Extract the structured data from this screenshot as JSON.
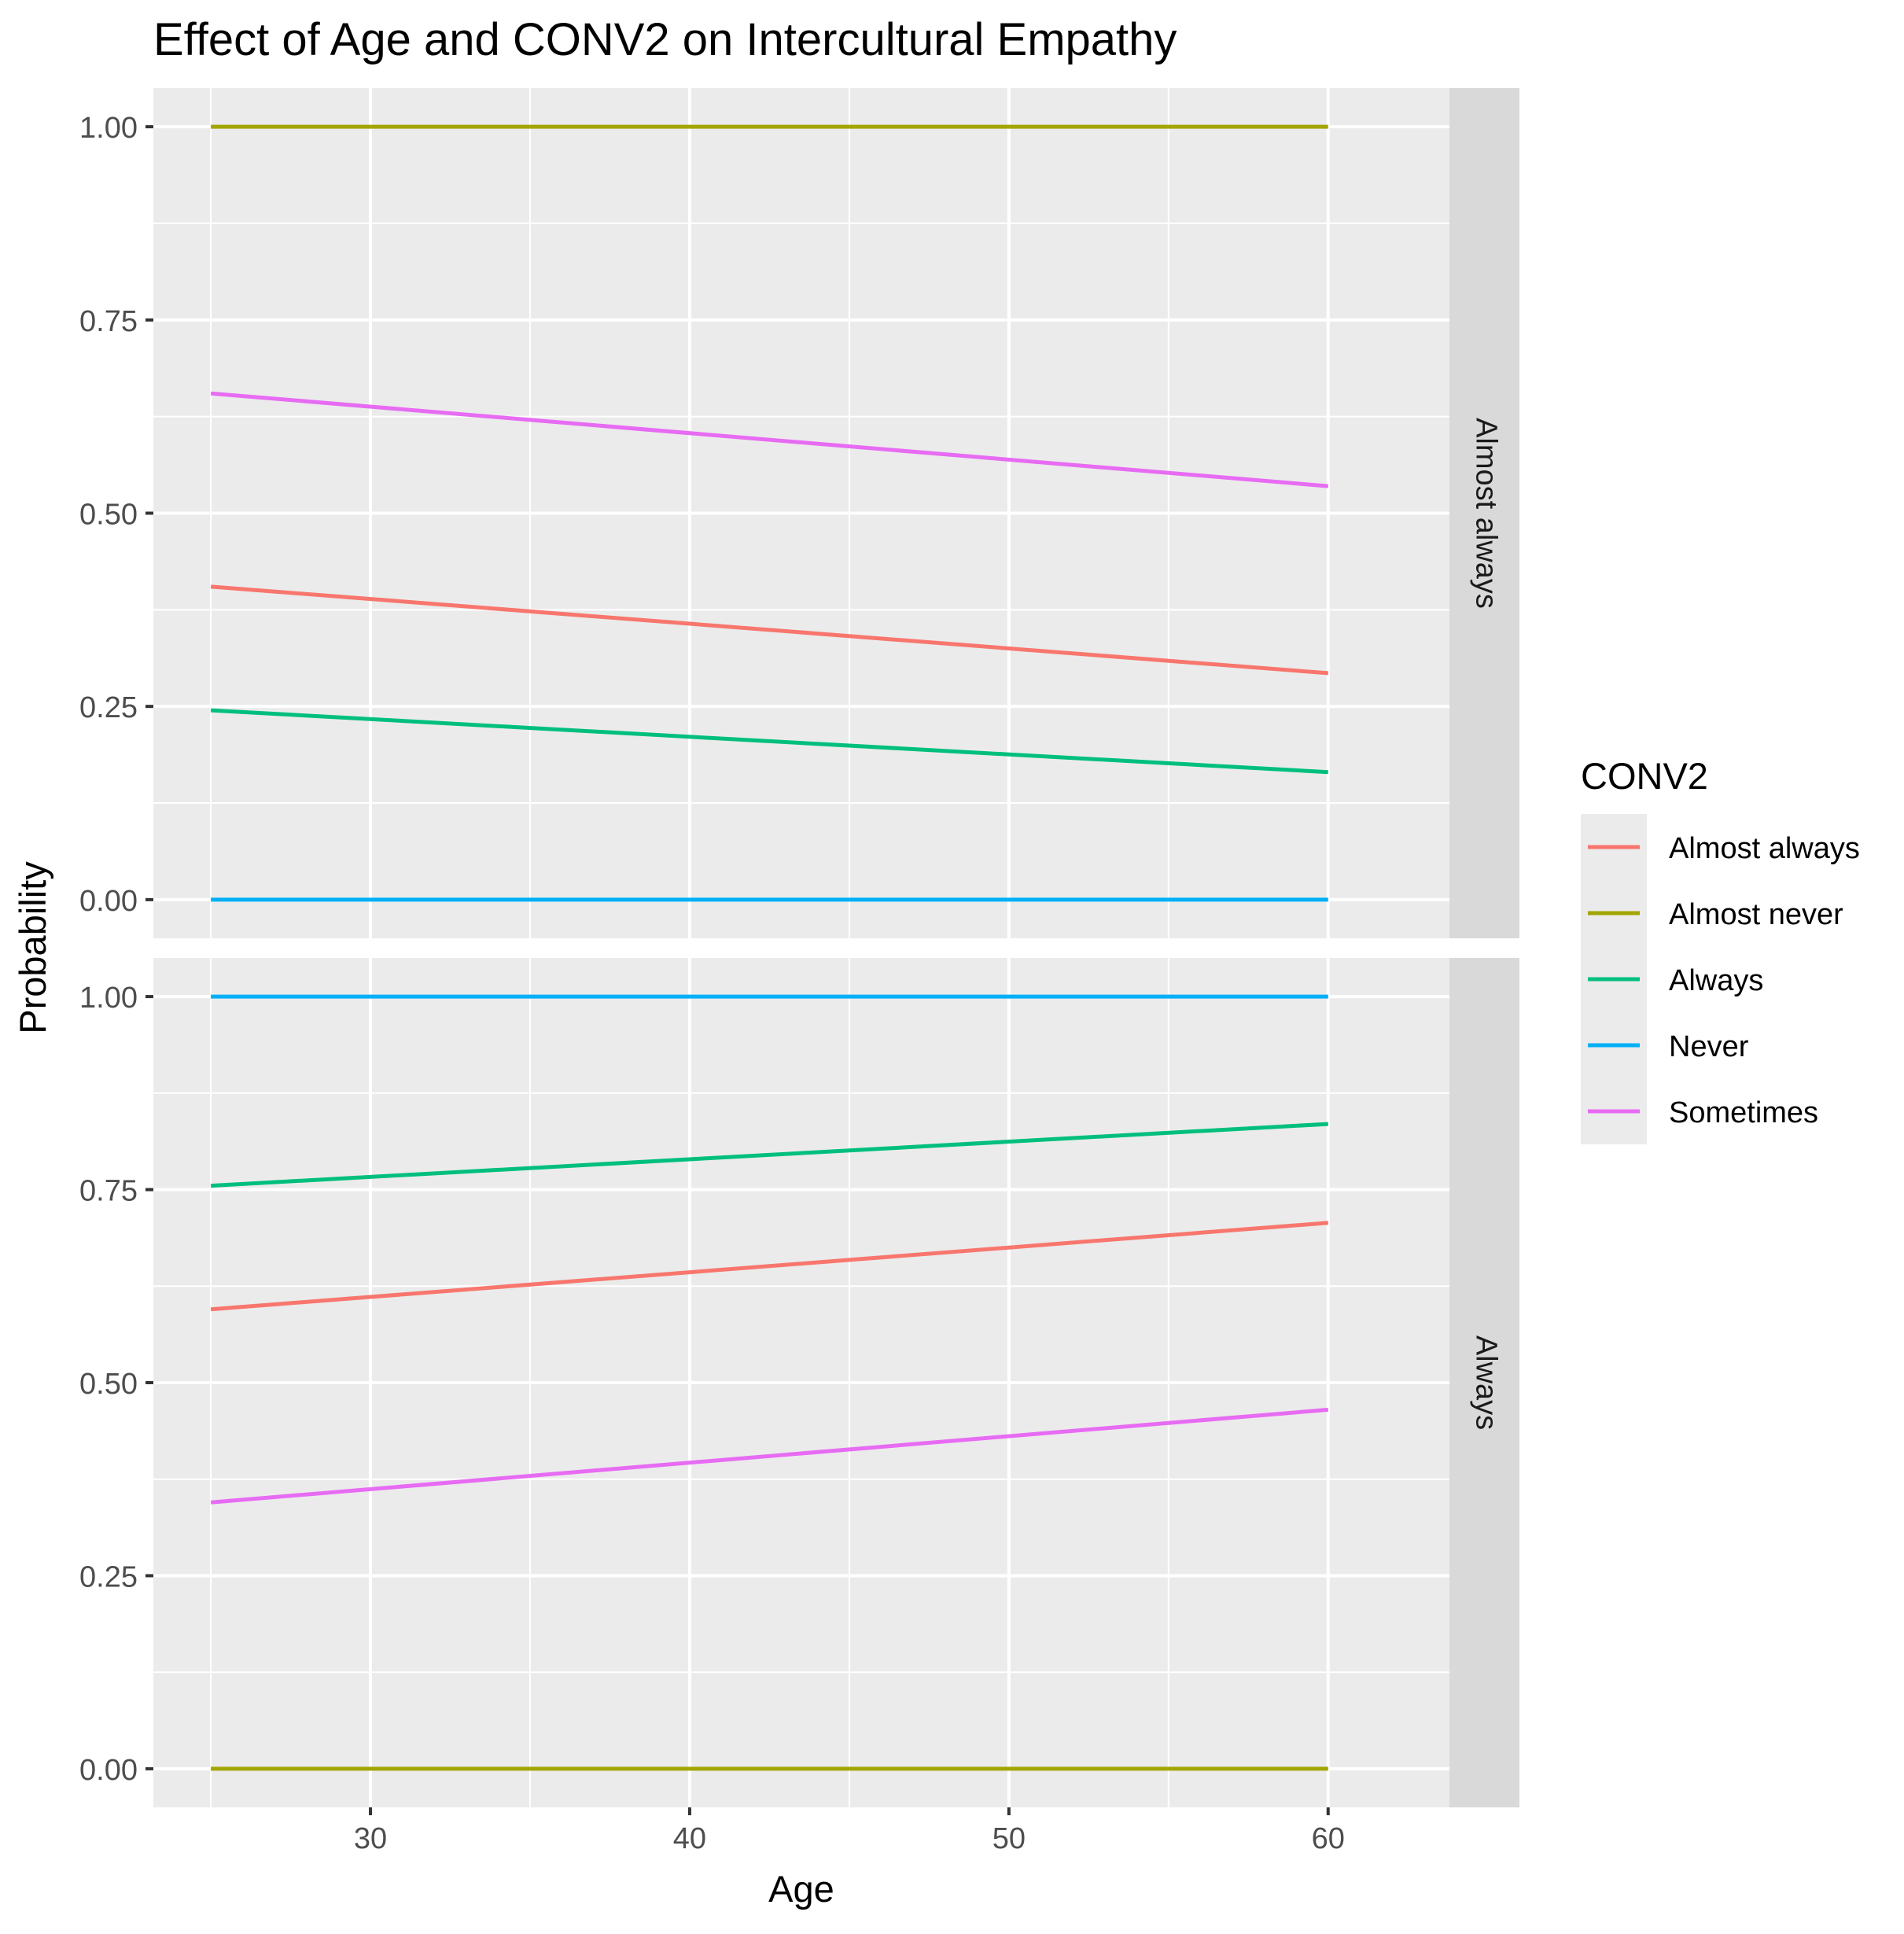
{
  "chart_data": {
    "type": "line",
    "title": "Effect of Age and CONV2 on Intercultural Empathy",
    "xlabel": "Age",
    "ylabel": "Probability",
    "xlim": [
      23.2,
      63.8
    ],
    "ylim": [
      -0.05,
      1.05
    ],
    "x_ticks": [
      30,
      40,
      50,
      60
    ],
    "x_tick_labels": [
      "30",
      "40",
      "50",
      "60"
    ],
    "y_ticks": [
      0,
      0.25,
      0.5,
      0.75,
      1
    ],
    "y_tick_labels": [
      "0.00",
      "0.25",
      "0.50",
      "0.75",
      "1.00"
    ],
    "grid": true,
    "legend": {
      "title": "CONV2",
      "placement": "right",
      "entries": [
        {
          "name": "Almost always",
          "color": "#F8766D"
        },
        {
          "name": "Almost never",
          "color": "#A3A500"
        },
        {
          "name": "Always",
          "color": "#00BF7D"
        },
        {
          "name": "Never",
          "color": "#00B0F6"
        },
        {
          "name": "Sometimes",
          "color": "#E76BF3"
        }
      ]
    },
    "panels": [
      {
        "strip_label": "Almost always",
        "x": [
          25,
          60
        ],
        "series": [
          {
            "name": "Almost always",
            "color": "#F8766D",
            "values": [
              0.405,
              0.293
            ]
          },
          {
            "name": "Almost never",
            "color": "#A3A500",
            "values": [
              1.0,
              1.0
            ]
          },
          {
            "name": "Always",
            "color": "#00BF7D",
            "values": [
              0.245,
              0.165
            ]
          },
          {
            "name": "Never",
            "color": "#00B0F6",
            "values": [
              0.0,
              0.0
            ]
          },
          {
            "name": "Sometimes",
            "color": "#E76BF3",
            "values": [
              0.655,
              0.535
            ]
          }
        ]
      },
      {
        "strip_label": "Always",
        "x": [
          25,
          60
        ],
        "series": [
          {
            "name": "Almost always",
            "color": "#F8766D",
            "values": [
              0.595,
              0.707
            ]
          },
          {
            "name": "Almost never",
            "color": "#A3A500",
            "values": [
              0.0,
              0.0
            ]
          },
          {
            "name": "Always",
            "color": "#00BF7D",
            "values": [
              0.755,
              0.835
            ]
          },
          {
            "name": "Never",
            "color": "#00B0F6",
            "values": [
              1.0,
              1.0
            ]
          },
          {
            "name": "Sometimes",
            "color": "#E76BF3",
            "values": [
              0.345,
              0.465
            ]
          }
        ]
      }
    ]
  }
}
